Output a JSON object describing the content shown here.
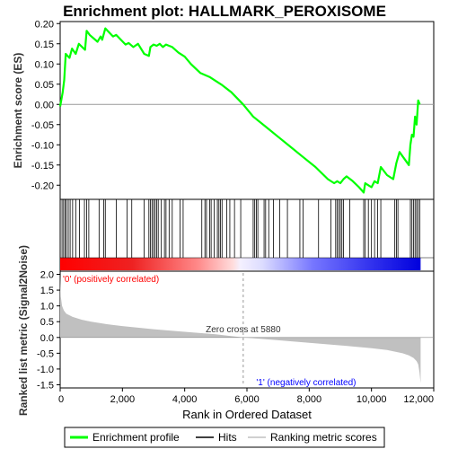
{
  "chart_data": {
    "type": "line",
    "title": "Enrichment plot: HALLMARK_PEROXISOME",
    "top_panel": {
      "ylabel": "Enrichment score (ES)",
      "ylim": [
        -0.235,
        0.205
      ],
      "yticks": [
        -0.2,
        -0.15,
        -0.1,
        -0.05,
        0.0,
        0.05,
        0.1,
        0.15,
        0.2
      ],
      "ytick_labels": [
        "-0.20",
        "-0.15",
        "-0.10",
        "-0.05",
        "0.00",
        "0.05",
        "0.10",
        "0.15",
        "0.20"
      ],
      "series": [
        {
          "name": "Enrichment profile",
          "color": "#00ff00",
          "x": [
            0,
            80,
            130,
            180,
            300,
            380,
            500,
            600,
            800,
            850,
            950,
            1200,
            1300,
            1350,
            1450,
            1700,
            1800,
            2100,
            2200,
            2350,
            2500,
            2700,
            2850,
            2900,
            3000,
            3100,
            3200,
            3300,
            3400,
            3500,
            3600,
            3800,
            4000,
            4200,
            4500,
            4800,
            5000,
            5200,
            5500,
            5880,
            6200,
            6600,
            7000,
            7400,
            7800,
            8200,
            8600,
            8800,
            8900,
            9000,
            9100,
            9200,
            9400,
            9600,
            9750,
            9800,
            9900,
            10000,
            10100,
            10200,
            10300,
            10500,
            10700,
            10800,
            10900,
            11200,
            11250,
            11300,
            11350,
            11400,
            11450,
            11500,
            11550
          ],
          "y": [
            -0.005,
            0.03,
            0.06,
            0.125,
            0.115,
            0.138,
            0.125,
            0.15,
            0.135,
            0.182,
            0.172,
            0.155,
            0.168,
            0.16,
            0.188,
            0.168,
            0.172,
            0.148,
            0.152,
            0.142,
            0.15,
            0.125,
            0.12,
            0.142,
            0.148,
            0.145,
            0.15,
            0.142,
            0.148,
            0.145,
            0.142,
            0.128,
            0.118,
            0.1,
            0.078,
            0.068,
            0.058,
            0.048,
            0.03,
            0.0,
            -0.03,
            -0.055,
            -0.08,
            -0.105,
            -0.13,
            -0.155,
            -0.185,
            -0.195,
            -0.19,
            -0.195,
            -0.185,
            -0.178,
            -0.19,
            -0.205,
            -0.218,
            -0.195,
            -0.2,
            -0.205,
            -0.19,
            -0.195,
            -0.155,
            -0.175,
            -0.185,
            -0.145,
            -0.118,
            -0.15,
            -0.1,
            -0.075,
            -0.08,
            -0.03,
            -0.05,
            0.01,
            0.0
          ]
        }
      ]
    },
    "hits_panel": {
      "name": "Hits",
      "hit_positions": [
        60,
        110,
        160,
        200,
        260,
        320,
        400,
        500,
        620,
        780,
        850,
        920,
        1250,
        1400,
        1450,
        1800,
        2150,
        2300,
        2700,
        2850,
        2900,
        2950,
        3000,
        3050,
        3100,
        3150,
        3250,
        3350,
        3400,
        3500,
        3600,
        3850,
        3950,
        4550,
        4650,
        4700,
        4800,
        4850,
        4950,
        5050,
        5100,
        5150,
        5200,
        5350,
        5450,
        5600,
        5800,
        6200,
        6250,
        6300,
        6350,
        6550,
        6600,
        6700,
        6850,
        7050,
        7300,
        7700,
        7800,
        8300,
        8700,
        8850,
        8900,
        8950,
        9000,
        9050,
        9100,
        9300,
        9750,
        9800,
        9900,
        10000,
        10100,
        10200,
        10300,
        10750,
        10800,
        10850,
        11250,
        11300,
        11350,
        11400,
        11450,
        11500,
        11550
      ]
    },
    "rank_panel": {
      "ylabel": "Ranked list metric (Signal2Noise)",
      "ylim": [
        -1.6,
        2.1
      ],
      "yticks": [
        -1.5,
        -1.0,
        -0.5,
        0.0,
        0.5,
        1.0,
        1.5,
        2.0
      ],
      "ytick_labels": [
        "-1.5",
        "-1.0",
        "-0.5",
        "0.0",
        "0.5",
        "1.0",
        "1.5",
        "2.0"
      ],
      "series": [
        {
          "name": "Ranking metric scores",
          "color": "#c0c0c0",
          "x": [
            0,
            20,
            60,
            120,
            200,
            400,
            700,
            1000,
            1500,
            2000,
            3000,
            4000,
            5000,
            5880,
            7000,
            8000,
            9000,
            10000,
            10500,
            11000,
            11200,
            11350,
            11450,
            11500,
            11540,
            11578
          ],
          "y": [
            1.95,
            1.3,
            1.0,
            0.85,
            0.75,
            0.65,
            0.56,
            0.5,
            0.42,
            0.36,
            0.26,
            0.18,
            0.1,
            0.0,
            -0.09,
            -0.17,
            -0.25,
            -0.34,
            -0.4,
            -0.5,
            -0.57,
            -0.65,
            -0.75,
            -0.85,
            -1.1,
            -1.45
          ]
        }
      ],
      "zero_cross_label": "Zero cross at 5880",
      "zero_cross_x": 5880,
      "positive_label": "'0' (positively correlated)",
      "negative_label": "'1' (negatively correlated)"
    },
    "x_axis": {
      "xlabel": "Rank in Ordered Dataset",
      "xlim": [
        0,
        12000
      ],
      "n_genes": 11578,
      "xticks": [
        0,
        2000,
        4000,
        6000,
        8000,
        10000,
        12000
      ],
      "xtick_labels": [
        "0",
        "2,000",
        "4,000",
        "6,000",
        "8,000",
        "10,000",
        "12,000"
      ]
    },
    "legend": {
      "placement": "bottom",
      "items": [
        {
          "label": "Enrichment profile",
          "color": "#00ff00"
        },
        {
          "label": "Hits",
          "color": "#000000"
        },
        {
          "label": "Ranking metric scores",
          "color": "#c0c0c0"
        }
      ]
    },
    "colors": {
      "profile": "#00ff00",
      "positive": "#ff0000",
      "negative": "#0000ff",
      "positive_label": "#ff0000",
      "negative_label": "#0000ff"
    }
  }
}
